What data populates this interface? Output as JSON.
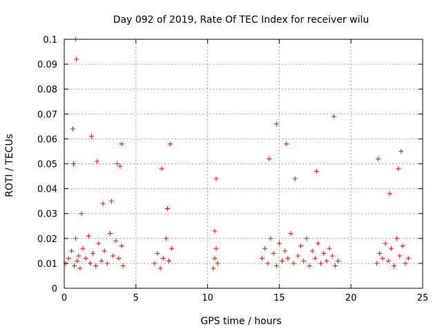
{
  "chart_data": {
    "type": "scatter",
    "title": "Day 092 of 2019, Rate Of TEC Index for receiver wilu",
    "xlabel": "GPS time / hours",
    "ylabel": "ROTI / TECUs",
    "xlim": [
      0,
      25
    ],
    "ylim": [
      0,
      0.1
    ],
    "x_ticks": [
      0,
      5,
      10,
      15,
      20,
      25
    ],
    "x_tick_labels": [
      "0",
      "5",
      "10",
      "15",
      "20",
      "25"
    ],
    "y_ticks": [
      0,
      0.01,
      0.02,
      0.03,
      0.04,
      0.05,
      0.06,
      0.07,
      0.08,
      0.09,
      0.1
    ],
    "y_tick_labels": [
      "0",
      "0.01",
      "0.02",
      "0.03",
      "0.04",
      "0.05",
      "0.06",
      "0.07",
      "0.08",
      "0.09",
      "0.1"
    ],
    "grid": true,
    "marker": "+",
    "marker_color": "#ff0000",
    "series": [
      {
        "name": "ROTI",
        "x": [
          0.1,
          0.3,
          0.5,
          0.7,
          0.8,
          0.9,
          1.0,
          1.1,
          1.3,
          1.5,
          1.7,
          1.8,
          2.0,
          2.2,
          2.4,
          2.6,
          2.8,
          3.0,
          3.2,
          3.4,
          3.6,
          3.8,
          4.0,
          4.1,
          0.8,
          0.85,
          0.6,
          0.65,
          1.9,
          2.3,
          3.7,
          3.9,
          4.0,
          1.2,
          2.7,
          3.3,
          6.3,
          6.5,
          6.7,
          6.9,
          7.1,
          7.3,
          7.5,
          6.8,
          7.4,
          7.2,
          10.4,
          10.5,
          10.6,
          10.7,
          10.5,
          10.6,
          13.8,
          14.0,
          14.2,
          14.4,
          14.6,
          14.8,
          15.0,
          15.2,
          15.4,
          15.6,
          15.8,
          16.0,
          16.3,
          16.5,
          16.7,
          16.9,
          17.1,
          17.3,
          17.5,
          17.7,
          17.9,
          18.1,
          18.3,
          18.5,
          18.7,
          18.9,
          19.1,
          14.8,
          15.5,
          18.8,
          14.3,
          16.1,
          17.6,
          21.8,
          22.0,
          22.2,
          22.4,
          22.6,
          22.8,
          23.0,
          23.2,
          23.4,
          23.6,
          23.8,
          24.0,
          22.7,
          23.5,
          21.9,
          23.3
        ],
        "y": [
          0.01,
          0.012,
          0.015,
          0.009,
          0.02,
          0.011,
          0.013,
          0.008,
          0.016,
          0.012,
          0.021,
          0.01,
          0.014,
          0.009,
          0.018,
          0.011,
          0.015,
          0.01,
          0.022,
          0.013,
          0.019,
          0.012,
          0.017,
          0.009,
          0.1,
          0.092,
          0.064,
          0.05,
          0.061,
          0.051,
          0.05,
          0.049,
          0.058,
          0.03,
          0.034,
          0.035,
          0.01,
          0.014,
          0.008,
          0.012,
          0.02,
          0.011,
          0.016,
          0.048,
          0.058,
          0.032,
          0.008,
          0.012,
          0.016,
          0.01,
          0.023,
          0.044,
          0.012,
          0.016,
          0.01,
          0.02,
          0.014,
          0.009,
          0.018,
          0.011,
          0.015,
          0.012,
          0.022,
          0.01,
          0.013,
          0.017,
          0.011,
          0.02,
          0.009,
          0.015,
          0.012,
          0.018,
          0.01,
          0.014,
          0.011,
          0.016,
          0.013,
          0.009,
          0.011,
          0.066,
          0.058,
          0.069,
          0.052,
          0.044,
          0.047,
          0.01,
          0.014,
          0.012,
          0.018,
          0.011,
          0.016,
          0.009,
          0.02,
          0.013,
          0.017,
          0.01,
          0.012,
          0.038,
          0.055,
          0.052,
          0.048
        ]
      }
    ]
  }
}
